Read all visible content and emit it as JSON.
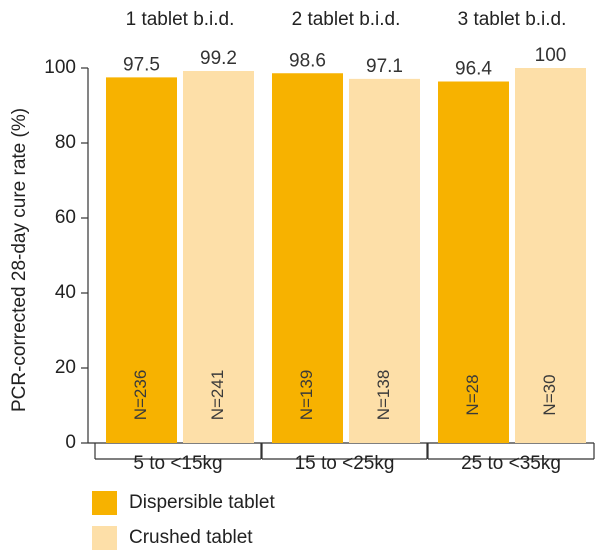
{
  "chart_data": {
    "type": "bar",
    "ylabel": "PCR-corrected 28-day cure rate (%)",
    "ylim": [
      0,
      100
    ],
    "yticks": [
      0,
      20,
      40,
      60,
      80,
      100
    ],
    "grid": false,
    "groups": [
      {
        "dose": "1 tablet b.i.d.",
        "category": "5 to <15kg",
        "bars": [
          {
            "series": "Dispersible tablet",
            "value": 97.5,
            "value_label": "97.5",
            "n_label": "N=236"
          },
          {
            "series": "Crushed tablet",
            "value": 99.2,
            "value_label": "99.2",
            "n_label": "N=241"
          }
        ]
      },
      {
        "dose": "2 tablet b.i.d.",
        "category": "15 to <25kg",
        "bars": [
          {
            "series": "Dispersible tablet",
            "value": 98.6,
            "value_label": "98.6",
            "n_label": "N=139"
          },
          {
            "series": "Crushed tablet",
            "value": 97.1,
            "value_label": "97.1",
            "n_label": "N=138"
          }
        ]
      },
      {
        "dose": "3 tablet b.i.d.",
        "category": "25 to <35kg",
        "bars": [
          {
            "series": "Dispersible tablet",
            "value": 96.4,
            "value_label": "96.4",
            "n_label": "N=28"
          },
          {
            "series": "Crushed tablet",
            "value": 100,
            "value_label": "100",
            "n_label": "N=30"
          }
        ]
      }
    ],
    "series": [
      {
        "name": "Dispersible tablet",
        "color": "#F7B200"
      },
      {
        "name": "Crushed tablet",
        "color": "#FDDFA8"
      }
    ],
    "legend_position": "bottom-left"
  }
}
